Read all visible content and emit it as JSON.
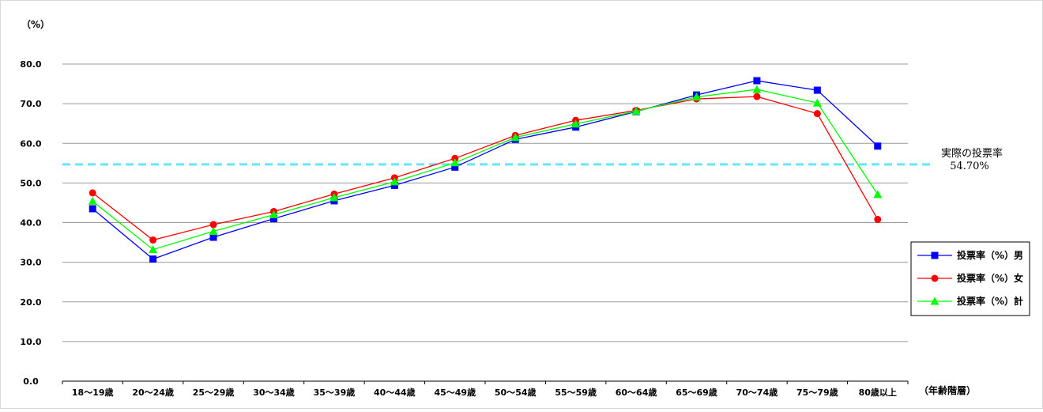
{
  "chart_data": {
    "type": "line",
    "categories": [
      "18～19歳",
      "20～24歳",
      "25～29歳",
      "30～34歳",
      "35～39歳",
      "40～44歳",
      "45～49歳",
      "50～54歳",
      "55～59歳",
      "60～64歳",
      "65～69歳",
      "70～74歳",
      "75～79歳",
      "80歳以上"
    ],
    "series": [
      {
        "name": "投票率（%）男",
        "color": "#0000ff",
        "marker": "square",
        "values": [
          43.5,
          30.8,
          36.3,
          41.0,
          45.5,
          49.4,
          54.0,
          61.0,
          64.1,
          68.0,
          72.2,
          75.8,
          73.4,
          59.3
        ]
      },
      {
        "name": "投票率（%）女",
        "color": "#ff0000",
        "marker": "circle",
        "values": [
          47.5,
          35.6,
          39.5,
          42.8,
          47.2,
          51.3,
          56.2,
          62.0,
          65.8,
          68.3,
          71.2,
          71.8,
          67.5,
          40.8
        ]
      },
      {
        "name": "投票率（%）計",
        "color": "#00ff00",
        "marker": "triangle",
        "values": [
          45.4,
          33.2,
          37.8,
          42.0,
          46.3,
          50.3,
          55.1,
          61.5,
          64.9,
          68.1,
          71.7,
          73.6,
          70.2,
          47.1
        ]
      }
    ],
    "y_unit_label": "（%）",
    "x_unit_label": "（年齢階層）",
    "ylim": [
      0,
      80
    ],
    "yticks": [
      "0.0",
      "10.0",
      "20.0",
      "30.0",
      "40.0",
      "50.0",
      "60.0",
      "70.0",
      "80.0"
    ],
    "grid": "horizontal",
    "legend_position": "right",
    "reference_line": {
      "value": 54.7,
      "label": "実際の投票率",
      "value_label": "54.70%",
      "color": "#66e6ff",
      "style": "dashed"
    }
  }
}
